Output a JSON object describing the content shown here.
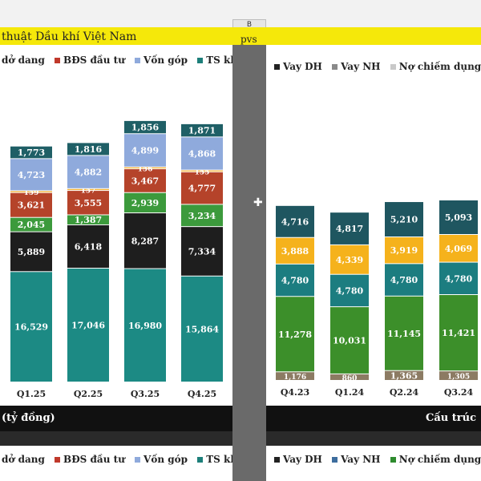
{
  "header": {
    "column_label": "B",
    "title": "thuật Dầu khí Việt Nam",
    "ticker": "pvs"
  },
  "left_chart": {
    "legend": [
      {
        "label": "dở dang",
        "color": ""
      },
      {
        "label": "BĐS đầu tư",
        "color": "#c0392b"
      },
      {
        "label": "Vốn góp",
        "color": "#8faadc"
      },
      {
        "label": "TS khác",
        "color": "#1d7f7a"
      }
    ],
    "footer_label": "(tỷ đồng)",
    "bottom_legend": [
      {
        "label": "dở dang",
        "color": ""
      },
      {
        "label": "BĐS đầu tư",
        "color": "#c0392b"
      },
      {
        "label": "Vốn góp",
        "color": "#8faadc"
      },
      {
        "label": "TS khác",
        "color": "#1d7f7a"
      }
    ]
  },
  "right_chart": {
    "legend": [
      {
        "label": "Vay DH",
        "color": "#222222"
      },
      {
        "label": "Vay NH",
        "color": "#8a8a8a"
      },
      {
        "label": "Nợ chiếm dụng",
        "color": "#c9c9c9"
      }
    ],
    "footer_label": "Cấu trúc",
    "bottom_legend": [
      {
        "label": "Vay DH",
        "color": "#222222"
      },
      {
        "label": "Vay NH",
        "color": "#3d6d9e"
      },
      {
        "label": "Nợ chiếm dụng",
        "color": "#2e8b2e"
      }
    ]
  },
  "chart_data": [
    {
      "type": "bar",
      "stacked": true,
      "categories": [
        "Q1.25",
        "Q2.25",
        "Q3.25",
        "Q4.25"
      ],
      "series": [
        {
          "values": [
            16529,
            17046,
            16980,
            15864
          ],
          "color": "#1c8a84"
        },
        {
          "values": [
            5889,
            6418,
            8287,
            7334
          ],
          "color": "#1e1e1e"
        },
        {
          "values": [
            2045,
            1387,
            2939,
            3234
          ],
          "color": "#3c9a3c"
        },
        {
          "values": [
            3621,
            3555,
            3467,
            4777
          ],
          "color": "#b5432a"
        },
        {
          "values": [
            159,
            157,
            156,
            155
          ],
          "color": "#f2b134"
        },
        {
          "values": [
            4723,
            4882,
            4899,
            4868
          ],
          "color": "#8faadc"
        },
        {
          "values": [
            1773,
            1816,
            1856,
            1871
          ],
          "color": "#1f5f66"
        }
      ],
      "data_labels": [
        [
          "16,529",
          "5,889",
          "2,045",
          "3,621",
          "159",
          "4,723",
          "1,773"
        ],
        [
          "17,046",
          "6,418",
          "1,387",
          "3,555",
          "157",
          "4,882",
          "1,816"
        ],
        [
          "16,980",
          "8,287",
          "2,939",
          "3,467",
          "156",
          "4,899",
          "1,856"
        ],
        [
          "15,864",
          "7,334",
          "3,234",
          "4,777",
          "155",
          "4,868",
          "1,871"
        ]
      ]
    },
    {
      "type": "bar",
      "stacked": true,
      "categories": [
        "Q4.23",
        "Q1.24",
        "Q2.24",
        "Q3.24"
      ],
      "series": [
        {
          "values": [
            1176,
            860,
            1365,
            1305
          ],
          "color": "#8c7b63"
        },
        {
          "values": [
            11278,
            10031,
            11145,
            11421
          ],
          "color": "#3c8f2a"
        },
        {
          "values": [
            4780,
            4780,
            4780,
            4780
          ],
          "color": "#1c7d80"
        },
        {
          "values": [
            3888,
            4339,
            3919,
            4069
          ],
          "color": "#f5b21c"
        },
        {
          "values": [
            4716,
            4817,
            5210,
            5093
          ],
          "color": "#1f5660"
        }
      ],
      "data_labels": [
        [
          "1,176",
          "11,278",
          "4,780",
          "3,888",
          "4,716"
        ],
        [
          "860",
          "10,031",
          "4,780",
          "4,339",
          "4,817"
        ],
        [
          "1,365",
          "11,145",
          "4,780",
          "3,919",
          "5,210"
        ],
        [
          "1,305",
          "11,421",
          "4,780",
          "4,069",
          "5,093"
        ]
      ]
    }
  ]
}
